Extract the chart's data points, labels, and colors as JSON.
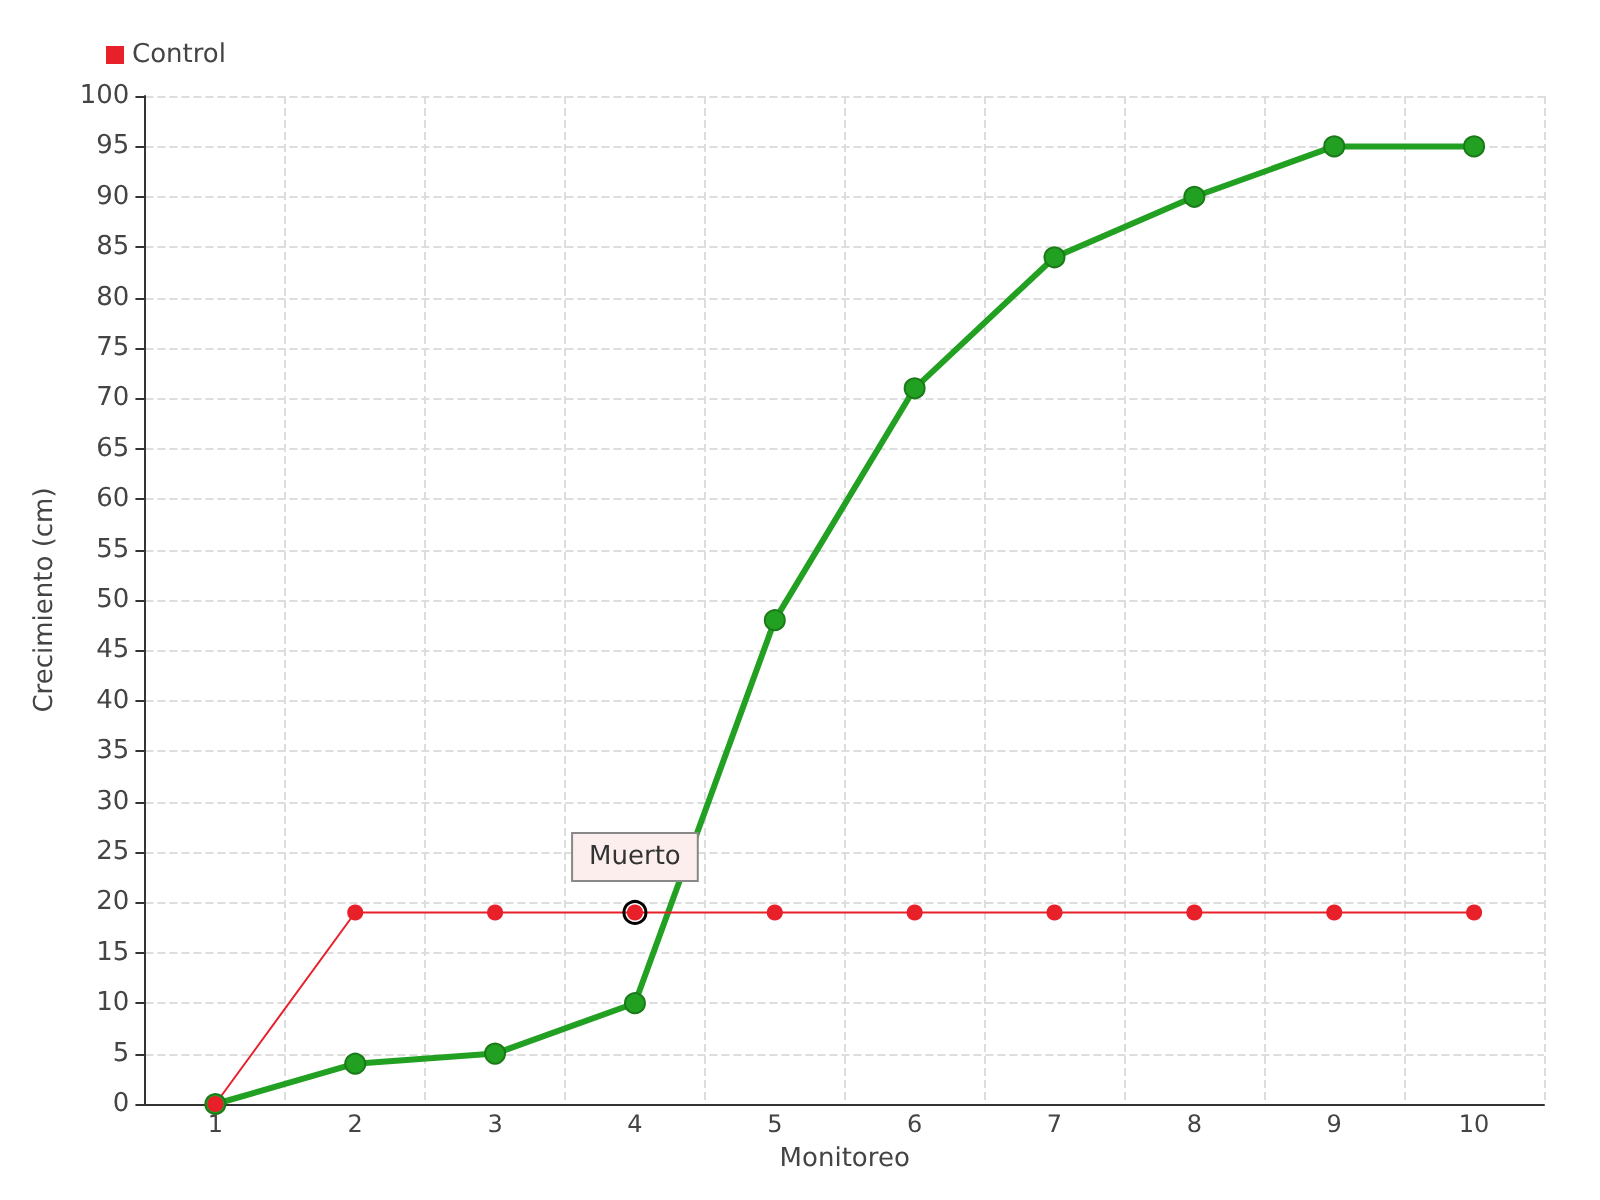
{
  "chart_data": {
    "type": "line",
    "xlabel": "Monitoreo",
    "ylabel": "Crecimiento (cm)",
    "categories": [
      "1",
      "2",
      "3",
      "4",
      "5",
      "6",
      "7",
      "8",
      "9",
      "10"
    ],
    "series": [
      {
        "color": "#22a022",
        "values": [
          0,
          4,
          5,
          10,
          48,
          71,
          84,
          90,
          95,
          95
        ]
      },
      {
        "name": "Control",
        "color": "#e8202a",
        "values": [
          0,
          19,
          19,
          19,
          19,
          19,
          19,
          19,
          19,
          19
        ]
      }
    ],
    "ylim": [
      0,
      100
    ],
    "yticks": [
      0,
      5,
      10,
      15,
      20,
      25,
      30,
      35,
      40,
      45,
      50,
      55,
      60,
      65,
      70,
      75,
      80,
      85,
      90,
      95,
      100
    ],
    "grid": true,
    "legend": "top left",
    "marker": "circle",
    "line_style": "solid",
    "annotations": [
      {
        "text": "Muerto",
        "x": "4",
        "y": 19
      }
    ]
  }
}
